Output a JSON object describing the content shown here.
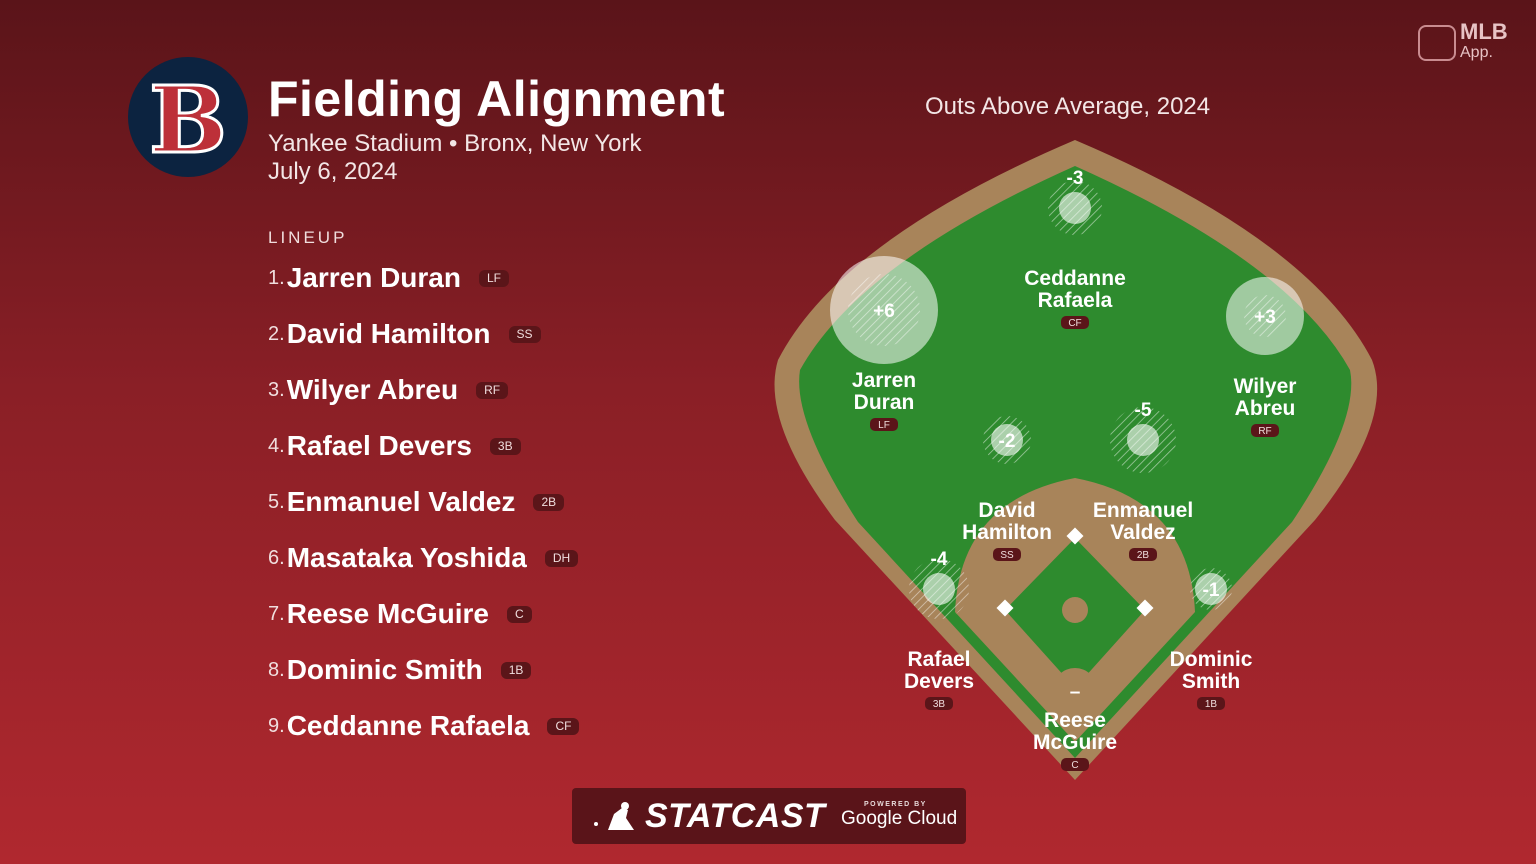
{
  "header": {
    "title": "Fielding Alignment",
    "venue": "Yankee Stadium • Bronx, New York",
    "date": "July 6, 2024",
    "team_logo_letter": "B"
  },
  "brand": {
    "app_name": "MLB",
    "app_sub": "App.",
    "statcast": "STATCAST",
    "powered_by": "POWERED BY",
    "google_cloud": "Google Cloud"
  },
  "lineup": {
    "label": "LINEUP",
    "players": [
      {
        "num": "1.",
        "name": "Jarren Duran",
        "pos": "LF"
      },
      {
        "num": "2.",
        "name": "David Hamilton",
        "pos": "SS"
      },
      {
        "num": "3.",
        "name": "Wilyer Abreu",
        "pos": "RF"
      },
      {
        "num": "4.",
        "name": "Rafael Devers",
        "pos": "3B"
      },
      {
        "num": "5.",
        "name": "Enmanuel Valdez",
        "pos": "2B"
      },
      {
        "num": "6.",
        "name": "Masataka Yoshida",
        "pos": "DH"
      },
      {
        "num": "7.",
        "name": "Reese McGuire",
        "pos": "C"
      },
      {
        "num": "8.",
        "name": "Dominic Smith",
        "pos": "1B"
      },
      {
        "num": "9.",
        "name": "Ceddanne Rafaela",
        "pos": "CF"
      }
    ]
  },
  "field": {
    "title": "Outs Above Average, 2024",
    "fielders": [
      {
        "first": "Ceddanne",
        "last": "Rafaela",
        "pos": "CF",
        "oaa_label": "-3",
        "oaa": -3
      },
      {
        "first": "Jarren",
        "last": "Duran",
        "pos": "LF",
        "oaa_label": "+6",
        "oaa": 6
      },
      {
        "first": "Wilyer",
        "last": "Abreu",
        "pos": "RF",
        "oaa_label": "+3",
        "oaa": 3
      },
      {
        "first": "David",
        "last": "Hamilton",
        "pos": "SS",
        "oaa_label": "-2",
        "oaa": -2
      },
      {
        "first": "Enmanuel",
        "last": "Valdez",
        "pos": "2B",
        "oaa_label": "-5",
        "oaa": -5
      },
      {
        "first": "Rafael",
        "last": "Devers",
        "pos": "3B",
        "oaa_label": "-4",
        "oaa": -4
      },
      {
        "first": "Dominic",
        "last": "Smith",
        "pos": "1B",
        "oaa_label": "-1",
        "oaa": -1
      },
      {
        "first": "Reese",
        "last": "McGuire",
        "pos": "C",
        "oaa_label": "–",
        "oaa": null
      }
    ]
  },
  "colors": {
    "grass": "#2e8b2e",
    "dirt": "#a8845a",
    "navy": "#0c2340",
    "red": "#bd3039"
  }
}
